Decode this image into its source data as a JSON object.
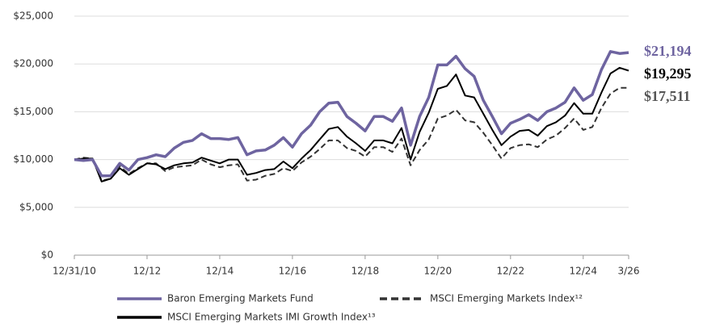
{
  "chart_data": {
    "type": "line",
    "x": [
      "12/10",
      "3/11",
      "6/11",
      "9/11",
      "12/11",
      "3/12",
      "6/12",
      "9/12",
      "12/12",
      "3/13",
      "6/13",
      "9/13",
      "12/13",
      "3/14",
      "6/14",
      "9/14",
      "12/14",
      "3/15",
      "6/15",
      "9/15",
      "12/15",
      "3/16",
      "6/16",
      "9/16",
      "12/16",
      "3/17",
      "6/17",
      "9/17",
      "12/17",
      "3/18",
      "6/18",
      "9/18",
      "12/18",
      "3/19",
      "6/19",
      "9/19",
      "12/19",
      "3/20",
      "6/20",
      "9/20",
      "12/20",
      "3/21",
      "6/21",
      "9/21",
      "12/21",
      "3/22",
      "6/22",
      "9/22",
      "12/22",
      "3/23",
      "6/23",
      "9/23",
      "12/23",
      "3/24",
      "6/24",
      "9/24",
      "12/24",
      "3/25",
      "6/25",
      "9/25",
      "12/25",
      "3/26"
    ],
    "xticks": [
      {
        "value": "12/10",
        "label": "12/31/10"
      },
      "12/12",
      "12/14",
      "12/16",
      "12/18",
      "12/20",
      "12/22",
      "12/24",
      "3/26"
    ],
    "ylim": [
      0,
      25000
    ],
    "yticks": [
      {
        "value": 0,
        "label": "$0"
      },
      {
        "value": 5000,
        "label": "$5,000"
      },
      {
        "value": 10000,
        "label": "$10,000"
      },
      {
        "value": 15000,
        "label": "$15,000"
      },
      {
        "value": 20000,
        "label": "$20,000"
      },
      {
        "value": 25000,
        "label": "$25,000"
      }
    ],
    "grid": true,
    "series": [
      {
        "name": "Baron Emerging Markets Fund",
        "color": "#6e64a0",
        "dash": "solid",
        "last_label": "$21,194",
        "values": [
          10000,
          9900,
          10000,
          8300,
          8300,
          9600,
          8900,
          10000,
          10200,
          10500,
          10300,
          11200,
          11800,
          12000,
          12700,
          12200,
          12200,
          12100,
          12300,
          10500,
          10900,
          11000,
          11500,
          12300,
          11300,
          12700,
          13600,
          15000,
          15900,
          16000,
          14500,
          13800,
          13000,
          14500,
          14500,
          14000,
          15400,
          11500,
          14500,
          16500,
          19900,
          19900,
          20800,
          19500,
          18700,
          16200,
          14500,
          12700,
          13800,
          14200,
          14700,
          14100,
          15000,
          15400,
          16000,
          17500,
          16200,
          16800,
          19400,
          21300,
          21100,
          21194
        ]
      },
      {
        "name": "MSCI Emerging Markets Index¹²",
        "color": "#333333",
        "dash": "dashed",
        "last_label": "$17,511",
        "values": [
          10000,
          10200,
          10100,
          7800,
          8000,
          9300,
          8500,
          9100,
          9600,
          9600,
          8800,
          9200,
          9300,
          9400,
          10000,
          9500,
          9200,
          9400,
          9500,
          7800,
          7900,
          8300,
          8500,
          9100,
          8800,
          9700,
          10300,
          11100,
          12000,
          12000,
          11200,
          10900,
          10300,
          11300,
          11300,
          10800,
          12200,
          9400,
          11000,
          12100,
          14300,
          14600,
          15200,
          14100,
          13900,
          12800,
          11500,
          10100,
          11200,
          11500,
          11600,
          11300,
          12100,
          12500,
          13300,
          14300,
          13100,
          13400,
          15400,
          16900,
          17500,
          17511
        ]
      },
      {
        "name": "MSCI Emerging Markets IMI Growth Index¹³",
        "color": "#000000",
        "dash": "solid",
        "last_label": "$19,295",
        "values": [
          10000,
          10100,
          10100,
          7700,
          8000,
          9100,
          8400,
          9000,
          9600,
          9500,
          9000,
          9400,
          9600,
          9700,
          10200,
          9900,
          9600,
          10000,
          10000,
          8400,
          8600,
          8900,
          9000,
          9800,
          9100,
          10100,
          11000,
          12100,
          13200,
          13400,
          12400,
          11700,
          10900,
          12000,
          12000,
          11700,
          13300,
          10000,
          12900,
          14900,
          17400,
          17700,
          18900,
          16700,
          16500,
          14800,
          13100,
          11500,
          12400,
          13000,
          13100,
          12500,
          13500,
          13900,
          14600,
          15900,
          14800,
          14800,
          17000,
          19000,
          19600,
          19295
        ]
      }
    ]
  }
}
